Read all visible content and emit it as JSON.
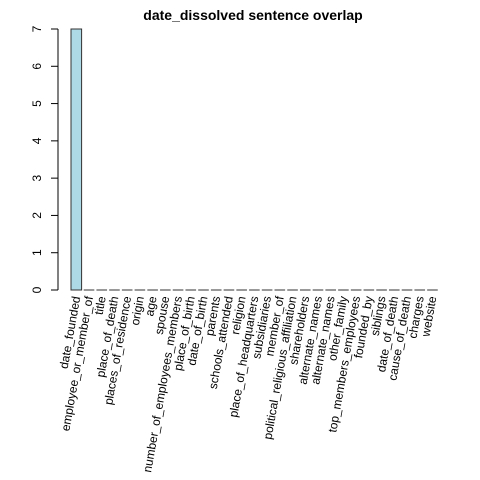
{
  "chart_data": {
    "type": "bar",
    "title": "date_dissolved sentence overlap",
    "xlabel": "",
    "ylabel": "",
    "ylim": [
      0,
      7
    ],
    "yticks": [
      0,
      1,
      2,
      3,
      4,
      5,
      6,
      7
    ],
    "grid": false,
    "bar_color": "#add8e6",
    "categories": [
      "date_founded",
      "employee_or_member_of",
      "title",
      "place_of_death",
      "places_of_residence",
      "origin",
      "age",
      "spouse",
      "number_of_employees_members",
      "place_of_birth",
      "date_of_birth",
      "parents",
      "schools_attended",
      "religion",
      "place_of_headquarters",
      "subsidiaries",
      "member_of",
      "political_religious_affiliation",
      "shareholders",
      "alternate_names",
      "alternate_names",
      "other_family",
      "top_members_employees",
      "founded_by",
      "siblings",
      "date_of_death",
      "cause_of_death",
      "charges",
      "website"
    ],
    "values": [
      7,
      0,
      0,
      0,
      0,
      0,
      0,
      0,
      0,
      0,
      0,
      0,
      0,
      0,
      0,
      0,
      0,
      0,
      0,
      0,
      0,
      0,
      0,
      0,
      0,
      0,
      0,
      0,
      0
    ]
  }
}
